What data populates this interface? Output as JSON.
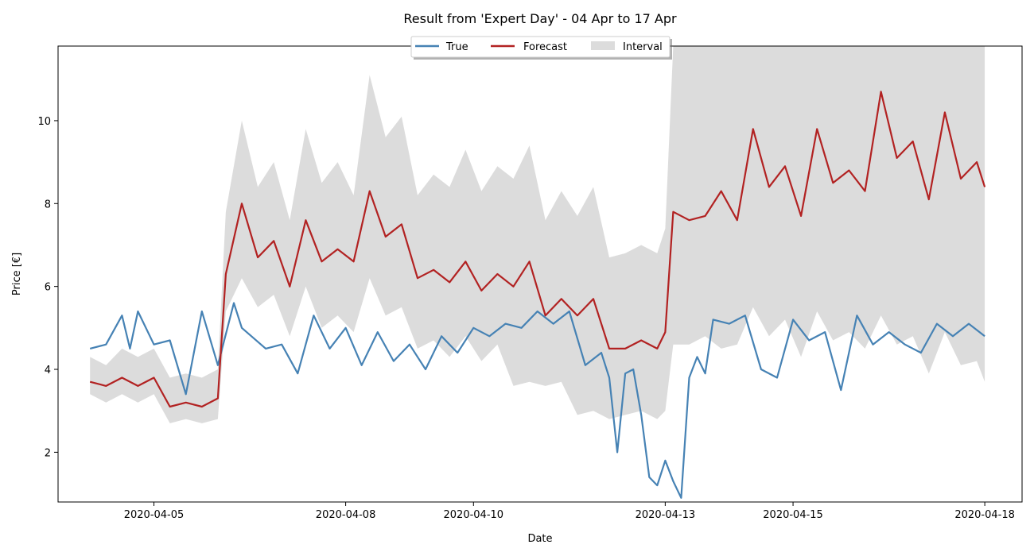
{
  "chart_data": {
    "type": "line",
    "title": "Result from 'Expert Day' - 04 Apr to 17 Apr",
    "xlabel": "Date",
    "ylabel": "Price [€]",
    "x_ticks": [
      "2020-04-05",
      "2020-04-08",
      "2020-04-10",
      "2020-04-13",
      "2020-04-15",
      "2020-04-18"
    ],
    "y_ticks": [
      2,
      4,
      6,
      8,
      10
    ],
    "x_range": [
      "2020-04-03T12:00",
      "2020-04-18T14:00"
    ],
    "ylim": [
      0.8,
      11.8
    ],
    "legend": {
      "placement": "top-center",
      "entries": [
        "True",
        "Forecast",
        "Interval"
      ]
    },
    "colors": {
      "true": "#4682b4",
      "forecast": "#b22222",
      "interval": "#dcdcdc"
    },
    "series": [
      {
        "name": "True",
        "x": [
          "2020-04-04T00:00",
          "2020-04-04T06:00",
          "2020-04-04T12:00",
          "2020-04-04T15:00",
          "2020-04-04T18:00",
          "2020-04-05T00:00",
          "2020-04-05T06:00",
          "2020-04-05T12:00",
          "2020-04-05T18:00",
          "2020-04-06T00:00",
          "2020-04-06T06:00",
          "2020-04-06T09:00",
          "2020-04-06T18:00",
          "2020-04-07T00:00",
          "2020-04-07T06:00",
          "2020-04-07T12:00",
          "2020-04-07T18:00",
          "2020-04-08T00:00",
          "2020-04-08T06:00",
          "2020-04-08T12:00",
          "2020-04-08T18:00",
          "2020-04-09T00:00",
          "2020-04-09T06:00",
          "2020-04-09T12:00",
          "2020-04-09T18:00",
          "2020-04-10T00:00",
          "2020-04-10T06:00",
          "2020-04-10T12:00",
          "2020-04-10T18:00",
          "2020-04-11T00:00",
          "2020-04-11T06:00",
          "2020-04-11T12:00",
          "2020-04-11T18:00",
          "2020-04-12T00:00",
          "2020-04-12T03:00",
          "2020-04-12T06:00",
          "2020-04-12T09:00",
          "2020-04-12T12:00",
          "2020-04-12T15:00",
          "2020-04-12T18:00",
          "2020-04-12T21:00",
          "2020-04-13T00:00",
          "2020-04-13T03:00",
          "2020-04-13T06:00",
          "2020-04-13T09:00",
          "2020-04-13T12:00",
          "2020-04-13T15:00",
          "2020-04-13T18:00",
          "2020-04-14T00:00",
          "2020-04-14T06:00",
          "2020-04-14T12:00",
          "2020-04-14T18:00",
          "2020-04-15T00:00",
          "2020-04-15T06:00",
          "2020-04-15T12:00",
          "2020-04-15T18:00",
          "2020-04-16T00:00",
          "2020-04-16T06:00",
          "2020-04-16T12:00",
          "2020-04-16T18:00",
          "2020-04-17T00:00",
          "2020-04-17T06:00",
          "2020-04-17T12:00",
          "2020-04-17T18:00",
          "2020-04-18T00:00"
        ],
        "values": [
          4.5,
          4.6,
          5.3,
          4.5,
          5.4,
          4.6,
          4.7,
          3.4,
          5.4,
          4.1,
          5.6,
          5.0,
          4.5,
          4.6,
          3.9,
          5.3,
          4.5,
          5.0,
          4.1,
          4.9,
          4.2,
          4.6,
          4.0,
          4.8,
          4.4,
          5.0,
          4.8,
          5.1,
          5.0,
          5.4,
          5.1,
          5.4,
          4.1,
          4.4,
          3.8,
          2.0,
          3.9,
          4.0,
          2.9,
          1.4,
          1.2,
          1.8,
          1.3,
          0.9,
          3.8,
          4.3,
          3.9,
          5.2,
          5.1,
          5.3,
          4.0,
          3.8,
          5.2,
          4.7,
          4.9,
          3.5,
          5.3,
          4.6,
          4.9,
          4.6,
          4.4,
          5.1,
          4.8,
          5.1,
          4.8
        ]
      },
      {
        "name": "Forecast",
        "x": [
          "2020-04-04T00:00",
          "2020-04-04T06:00",
          "2020-04-04T12:00",
          "2020-04-04T18:00",
          "2020-04-05T00:00",
          "2020-04-05T06:00",
          "2020-04-05T12:00",
          "2020-04-05T18:00",
          "2020-04-06T00:00",
          "2020-04-06T03:00",
          "2020-04-06T09:00",
          "2020-04-06T15:00",
          "2020-04-06T21:00",
          "2020-04-07T03:00",
          "2020-04-07T09:00",
          "2020-04-07T15:00",
          "2020-04-07T21:00",
          "2020-04-08T03:00",
          "2020-04-08T09:00",
          "2020-04-08T15:00",
          "2020-04-08T21:00",
          "2020-04-09T03:00",
          "2020-04-09T09:00",
          "2020-04-09T15:00",
          "2020-04-09T21:00",
          "2020-04-10T03:00",
          "2020-04-10T09:00",
          "2020-04-10T15:00",
          "2020-04-10T21:00",
          "2020-04-11T03:00",
          "2020-04-11T09:00",
          "2020-04-11T15:00",
          "2020-04-11T21:00",
          "2020-04-12T03:00",
          "2020-04-12T09:00",
          "2020-04-12T15:00",
          "2020-04-12T21:00",
          "2020-04-13T00:00",
          "2020-04-13T03:00",
          "2020-04-13T09:00",
          "2020-04-13T15:00",
          "2020-04-13T21:00",
          "2020-04-14T03:00",
          "2020-04-14T09:00",
          "2020-04-14T15:00",
          "2020-04-14T21:00",
          "2020-04-15T03:00",
          "2020-04-15T09:00",
          "2020-04-15T15:00",
          "2020-04-15T21:00",
          "2020-04-16T03:00",
          "2020-04-16T09:00",
          "2020-04-16T15:00",
          "2020-04-16T21:00",
          "2020-04-17T03:00",
          "2020-04-17T09:00",
          "2020-04-17T15:00",
          "2020-04-17T21:00",
          "2020-04-18T00:00"
        ],
        "values": [
          3.7,
          3.6,
          3.8,
          3.6,
          3.8,
          3.1,
          3.2,
          3.1,
          3.3,
          6.3,
          8.0,
          6.7,
          7.1,
          6.0,
          7.6,
          6.6,
          6.9,
          6.6,
          8.3,
          7.2,
          7.5,
          6.2,
          6.4,
          6.1,
          6.6,
          5.9,
          6.3,
          6.0,
          6.6,
          5.3,
          5.7,
          5.3,
          5.7,
          4.5,
          4.5,
          4.7,
          4.5,
          4.9,
          7.8,
          7.6,
          7.7,
          8.3,
          7.6,
          9.8,
          8.4,
          8.9,
          7.7,
          9.8,
          8.5,
          8.8,
          8.3,
          10.7,
          9.1,
          9.5,
          8.1,
          10.2,
          8.6,
          9.0,
          8.4
        ]
      },
      {
        "name": "Interval",
        "x": [
          "2020-04-04T00:00",
          "2020-04-04T06:00",
          "2020-04-04T12:00",
          "2020-04-04T18:00",
          "2020-04-05T00:00",
          "2020-04-05T06:00",
          "2020-04-05T12:00",
          "2020-04-05T18:00",
          "2020-04-06T00:00",
          "2020-04-06T03:00",
          "2020-04-06T09:00",
          "2020-04-06T15:00",
          "2020-04-06T21:00",
          "2020-04-07T03:00",
          "2020-04-07T09:00",
          "2020-04-07T15:00",
          "2020-04-07T21:00",
          "2020-04-08T03:00",
          "2020-04-08T09:00",
          "2020-04-08T15:00",
          "2020-04-08T21:00",
          "2020-04-09T03:00",
          "2020-04-09T09:00",
          "2020-04-09T15:00",
          "2020-04-09T21:00",
          "2020-04-10T03:00",
          "2020-04-10T09:00",
          "2020-04-10T15:00",
          "2020-04-10T21:00",
          "2020-04-11T03:00",
          "2020-04-11T09:00",
          "2020-04-11T15:00",
          "2020-04-11T21:00",
          "2020-04-12T03:00",
          "2020-04-12T09:00",
          "2020-04-12T15:00",
          "2020-04-12T21:00",
          "2020-04-13T00:00",
          "2020-04-13T03:00",
          "2020-04-13T09:00",
          "2020-04-13T15:00",
          "2020-04-13T21:00",
          "2020-04-14T03:00",
          "2020-04-14T09:00",
          "2020-04-14T15:00",
          "2020-04-14T21:00",
          "2020-04-15T03:00",
          "2020-04-15T09:00",
          "2020-04-15T15:00",
          "2020-04-15T21:00",
          "2020-04-16T03:00",
          "2020-04-16T09:00",
          "2020-04-16T15:00",
          "2020-04-16T21:00",
          "2020-04-17T03:00",
          "2020-04-17T09:00",
          "2020-04-17T15:00",
          "2020-04-17T21:00",
          "2020-04-18T00:00"
        ],
        "lower": [
          3.4,
          3.2,
          3.4,
          3.2,
          3.4,
          2.7,
          2.8,
          2.7,
          2.8,
          5.4,
          6.2,
          5.5,
          5.8,
          4.8,
          6.0,
          5.0,
          5.3,
          4.9,
          6.2,
          5.3,
          5.5,
          4.5,
          4.7,
          4.3,
          4.8,
          4.2,
          4.6,
          3.6,
          3.7,
          3.6,
          3.7,
          2.9,
          3.0,
          2.8,
          2.9,
          3.0,
          2.8,
          3.0,
          4.6,
          4.6,
          4.8,
          4.5,
          4.6,
          5.5,
          4.8,
          5.2,
          4.3,
          5.4,
          4.7,
          4.9,
          4.5,
          5.3,
          4.6,
          4.8,
          3.9,
          4.9,
          4.1,
          4.2,
          3.7
        ],
        "upper": [
          4.3,
          4.1,
          4.5,
          4.3,
          4.5,
          3.8,
          3.9,
          3.8,
          4.0,
          7.8,
          10.0,
          8.4,
          9.0,
          7.6,
          9.8,
          8.5,
          9.0,
          8.2,
          11.1,
          9.6,
          10.1,
          8.2,
          8.7,
          8.4,
          9.3,
          8.3,
          8.9,
          8.6,
          9.4,
          7.6,
          8.3,
          7.7,
          8.4,
          6.7,
          6.8,
          7.0,
          6.8,
          7.4,
          11.8,
          11.8,
          11.8,
          11.8,
          11.8,
          11.8,
          11.8,
          11.8,
          11.8,
          11.8,
          11.8,
          11.8,
          11.8,
          11.8,
          11.8,
          11.8,
          11.8,
          11.8,
          11.8,
          11.8,
          11.8
        ]
      }
    ]
  }
}
